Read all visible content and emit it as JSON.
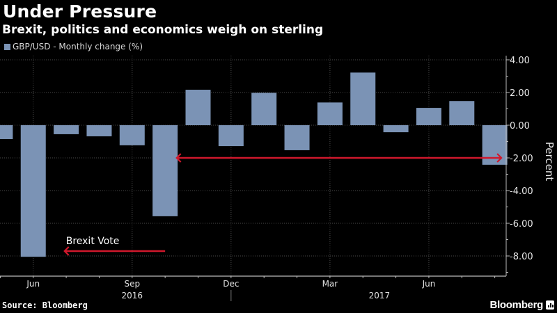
{
  "header": {
    "title": "Under Pressure",
    "subtitle": "Brexit, politics and economics weigh on sterling"
  },
  "footer": {
    "source": "Source: Bloomberg",
    "brand": "Bloomberg"
  },
  "colors": {
    "background": "#000000",
    "bar": "#7b93b5",
    "arrow": "#d0182c",
    "grid": "#4a4a4a",
    "axis": "#bdbdbd"
  },
  "chart_data": {
    "type": "bar",
    "title": "Under Pressure",
    "subtitle": "Brexit, politics and economics weigh on sterling",
    "legend": [
      {
        "name": "GBP/USD - Monthly change (%)",
        "color": "#7b93b5"
      }
    ],
    "legend_position": "top-left",
    "xlabel": "",
    "ylabel": "Percent",
    "y_axis_side": "right",
    "ylim": [
      -9.2,
      4.2
    ],
    "yticks": [
      4,
      2,
      0,
      -2,
      -4,
      -6,
      -8
    ],
    "ytick_labels": [
      "4.00",
      "2.00",
      "0.00",
      "-2.00",
      "-4.00",
      "-6.00",
      "-8.00"
    ],
    "grid": true,
    "categories": [
      "May 2016",
      "Jun 2016",
      "Jul 2016",
      "Aug 2016",
      "Sep 2016",
      "Oct 2016",
      "Nov 2016",
      "Dec 2016",
      "Jan 2017",
      "Feb 2017",
      "Mar 2017",
      "Apr 2017",
      "May 2017",
      "Jun 2017",
      "Jul 2017",
      "Aug 2017"
    ],
    "series": [
      {
        "name": "GBP/USD - Monthly change (%)",
        "values": [
          -0.85,
          -8.05,
          -0.55,
          -0.68,
          -1.23,
          -5.57,
          2.17,
          -1.28,
          1.98,
          -1.53,
          1.39,
          3.22,
          -0.43,
          1.06,
          1.48,
          -2.42
        ]
      }
    ],
    "xtick_labels": [
      {
        "label": "Jun",
        "index": 1
      },
      {
        "label": "Sep",
        "index": 4
      },
      {
        "label": "Dec",
        "index": 7
      },
      {
        "label": "Mar",
        "index": 10
      },
      {
        "label": "Jun",
        "index": 13
      }
    ],
    "year_labels": [
      {
        "label": "2016",
        "index": 4
      },
      {
        "label": "2017",
        "index": 11.5
      }
    ],
    "year_divider_index": 7,
    "annotations": [
      {
        "text": "Brexit Vote",
        "arrow_from_index": 5.0,
        "arrow_to_index": 1.95,
        "y": -7.7,
        "direction": "left"
      },
      {
        "text": "",
        "arrow_from_index": 5.35,
        "arrow_to_index": 15.2,
        "y": -2.0,
        "direction": "both"
      }
    ]
  }
}
